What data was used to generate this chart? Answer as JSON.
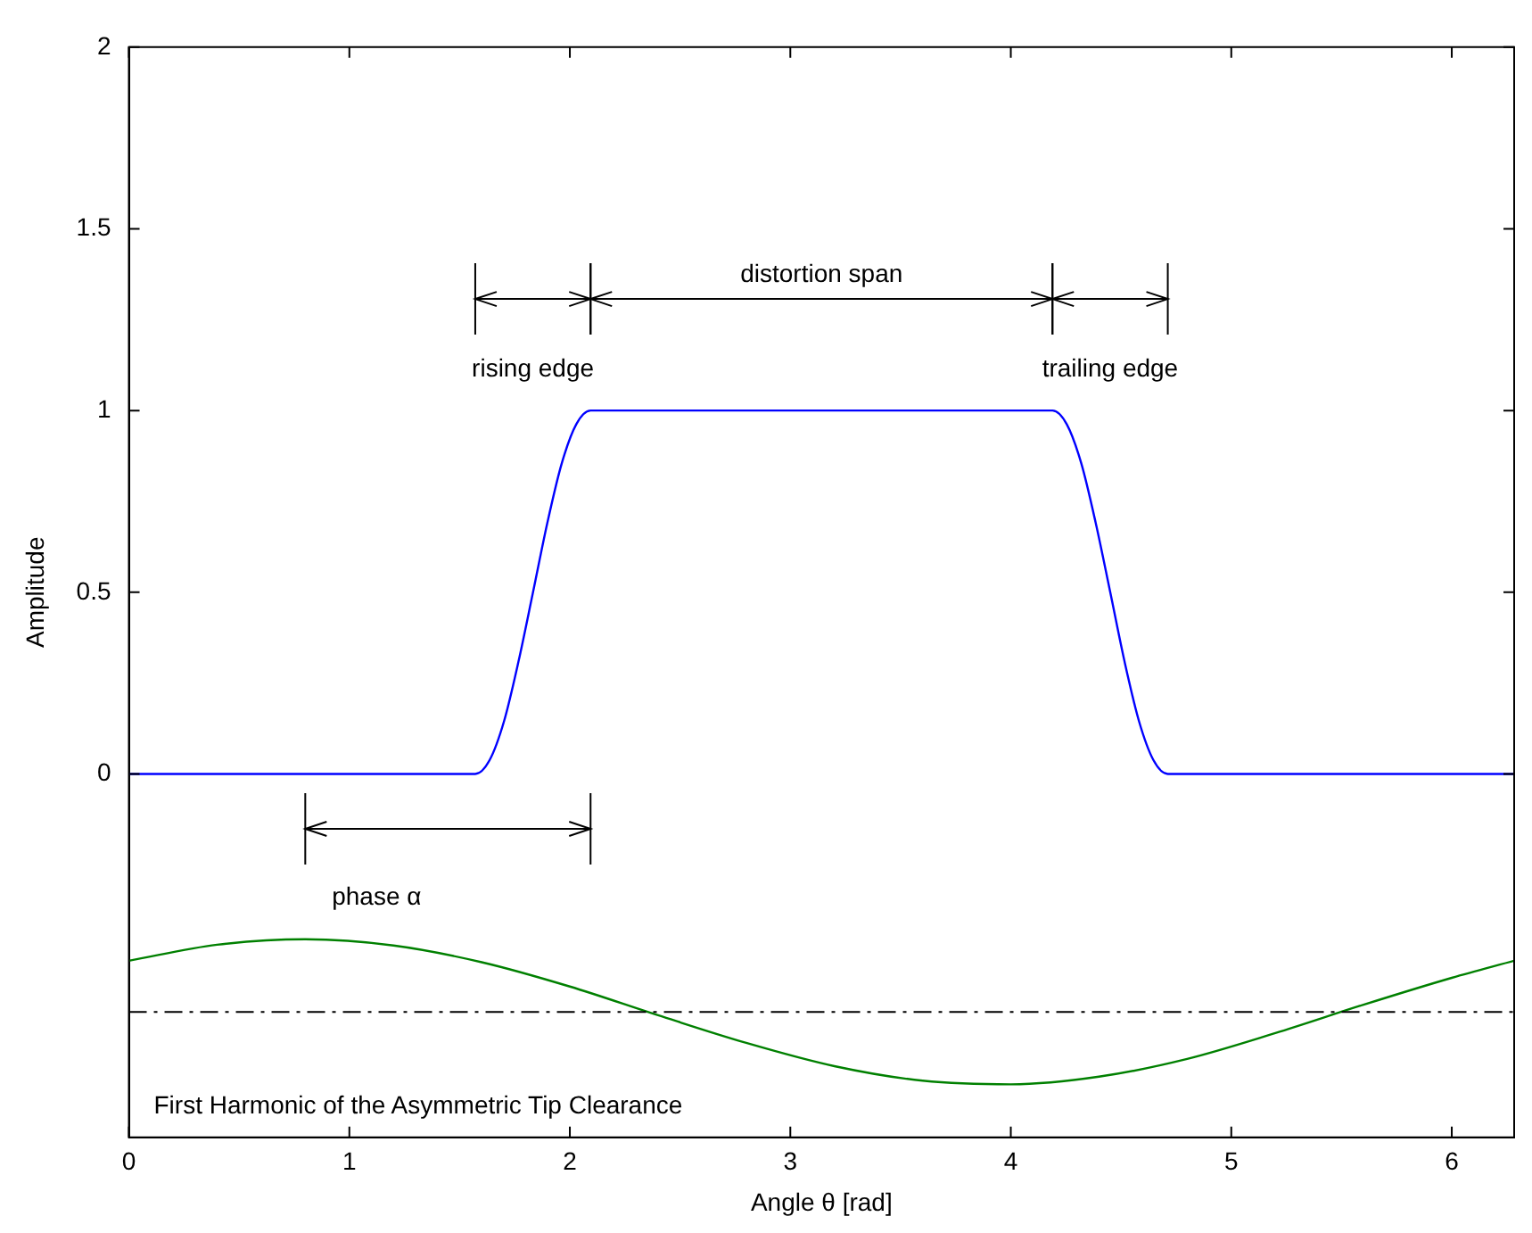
{
  "chart_data": {
    "type": "line",
    "xlabel": "Angle θ [rad]",
    "ylabel": "Amplitude",
    "xlim": [
      0,
      6.283
    ],
    "xticks": [
      0,
      1,
      2,
      3,
      4,
      5,
      6
    ],
    "ylim": [
      -1,
      2
    ],
    "yticks": [
      0,
      0.5,
      1,
      1.5,
      2
    ],
    "grid": false,
    "legend": false,
    "marker": "none",
    "series": [
      {
        "color": "#0000ff",
        "x": [
          0,
          1.571,
          1.636,
          1.702,
          1.767,
          1.833,
          1.898,
          1.963,
          2.029,
          2.094,
          4.189,
          4.254,
          4.32,
          4.385,
          4.451,
          4.516,
          4.581,
          4.647,
          4.712,
          6.283
        ],
        "values": [
          0,
          0,
          0.038,
          0.146,
          0.309,
          0.5,
          0.691,
          0.854,
          0.962,
          1,
          1,
          0.962,
          0.854,
          0.691,
          0.5,
          0.309,
          0.146,
          0.038,
          0,
          0
        ]
      },
      {
        "color": "#008000",
        "x": [
          0,
          0.4,
          0.8,
          1.2,
          1.6,
          2.0,
          2.4,
          2.8,
          3.2,
          3.6,
          4.0,
          4.4,
          4.8,
          5.2,
          5.6,
          6.0,
          6.283
        ],
        "values": [
          -0.514,
          -0.47,
          -0.455,
          -0.472,
          -0.518,
          -0.585,
          -0.664,
          -0.74,
          -0.804,
          -0.844,
          -0.854,
          -0.833,
          -0.784,
          -0.713,
          -0.635,
          -0.561,
          -0.514
        ]
      }
    ],
    "ref_lines": [
      {
        "axis": "y",
        "value": -0.655,
        "color": "#000000",
        "line_style": "dashed"
      }
    ],
    "annotations": [
      "rising edge",
      "distortion span",
      "trailing edge",
      "phase α",
      "First Harmonic of the Asymmetric Tip Clearance"
    ]
  }
}
